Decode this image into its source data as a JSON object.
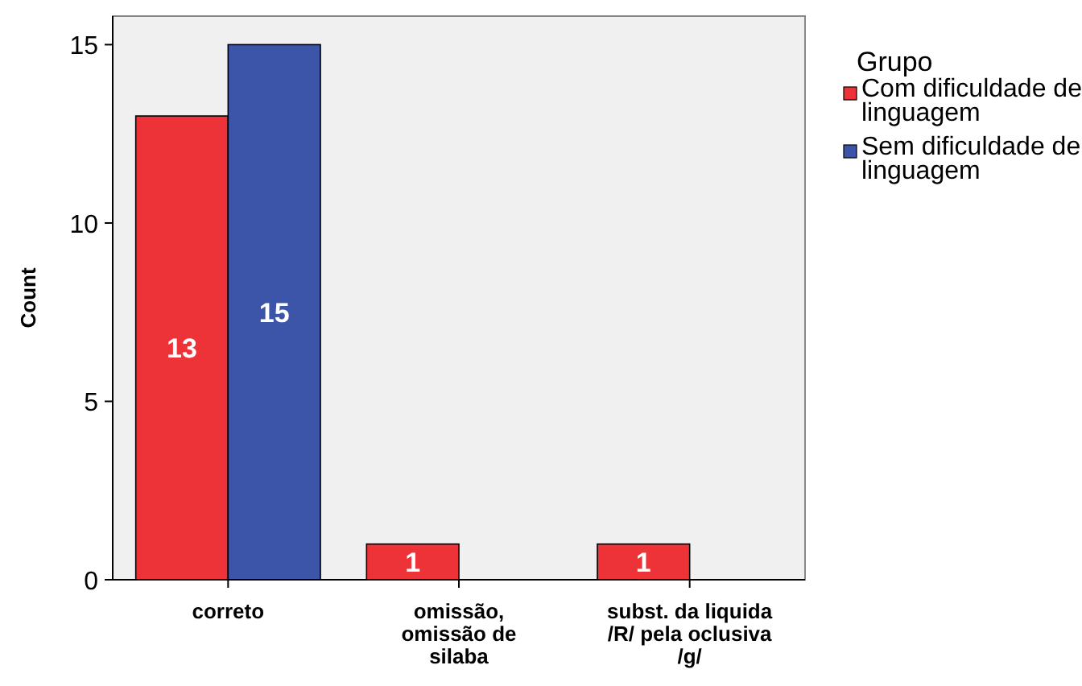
{
  "chart_data": {
    "type": "bar",
    "ylabel": "Count",
    "legend_title": "Grupo",
    "legend": "right",
    "categories": [
      "correto",
      "omissão, omissão de silaba",
      "subst. da liquida /R/ pela oclusiva /g/"
    ],
    "series": [
      {
        "name": "Com dificuldade de linguagem",
        "color": "#ee3338",
        "values": [
          13,
          1,
          1
        ],
        "value_labels": [
          "13",
          "1",
          "1"
        ]
      },
      {
        "name": "Sem dificuldade de linguagem",
        "color": "#3d55a8",
        "values": [
          15,
          0,
          0
        ],
        "value_labels": [
          "15",
          null,
          null
        ]
      }
    ],
    "ylim": [
      0,
      15.8
    ],
    "yticks": [
      0,
      5,
      10,
      15
    ],
    "grid": false
  }
}
